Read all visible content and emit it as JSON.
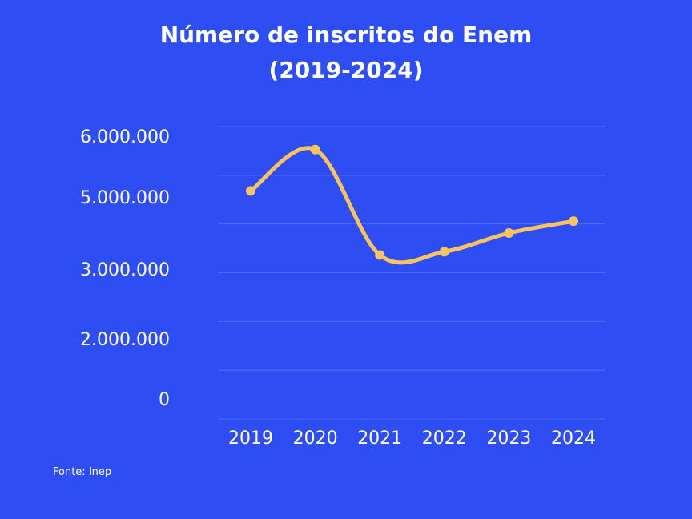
{
  "colors": {
    "background": "#2e4ef4",
    "line": "#f9c45e",
    "grid": "#5469f7",
    "text": "#ffffff"
  },
  "chart_data": {
    "type": "line",
    "title_lines": [
      "Número de inscritos do Enem",
      "(2019-2024)"
    ],
    "title": "Número de inscritos do Enem (2019-2024)",
    "categories": [
      "2019",
      "2020",
      "2021",
      "2022",
      "2023",
      "2024"
    ],
    "y_tick_labels": [
      "0",
      "2.000.000",
      "3.000.000",
      "5.000.000",
      "6.000.000"
    ],
    "y_ticks": [
      0,
      2000000,
      3000000,
      5000000,
      6000000
    ],
    "series": [
      {
        "values": [
          5100000,
          5780000,
          3390000,
          3480000,
          4000000,
          4330000
        ]
      }
    ],
    "grid": true,
    "legend": "none"
  },
  "source": "Fonte: Inep"
}
